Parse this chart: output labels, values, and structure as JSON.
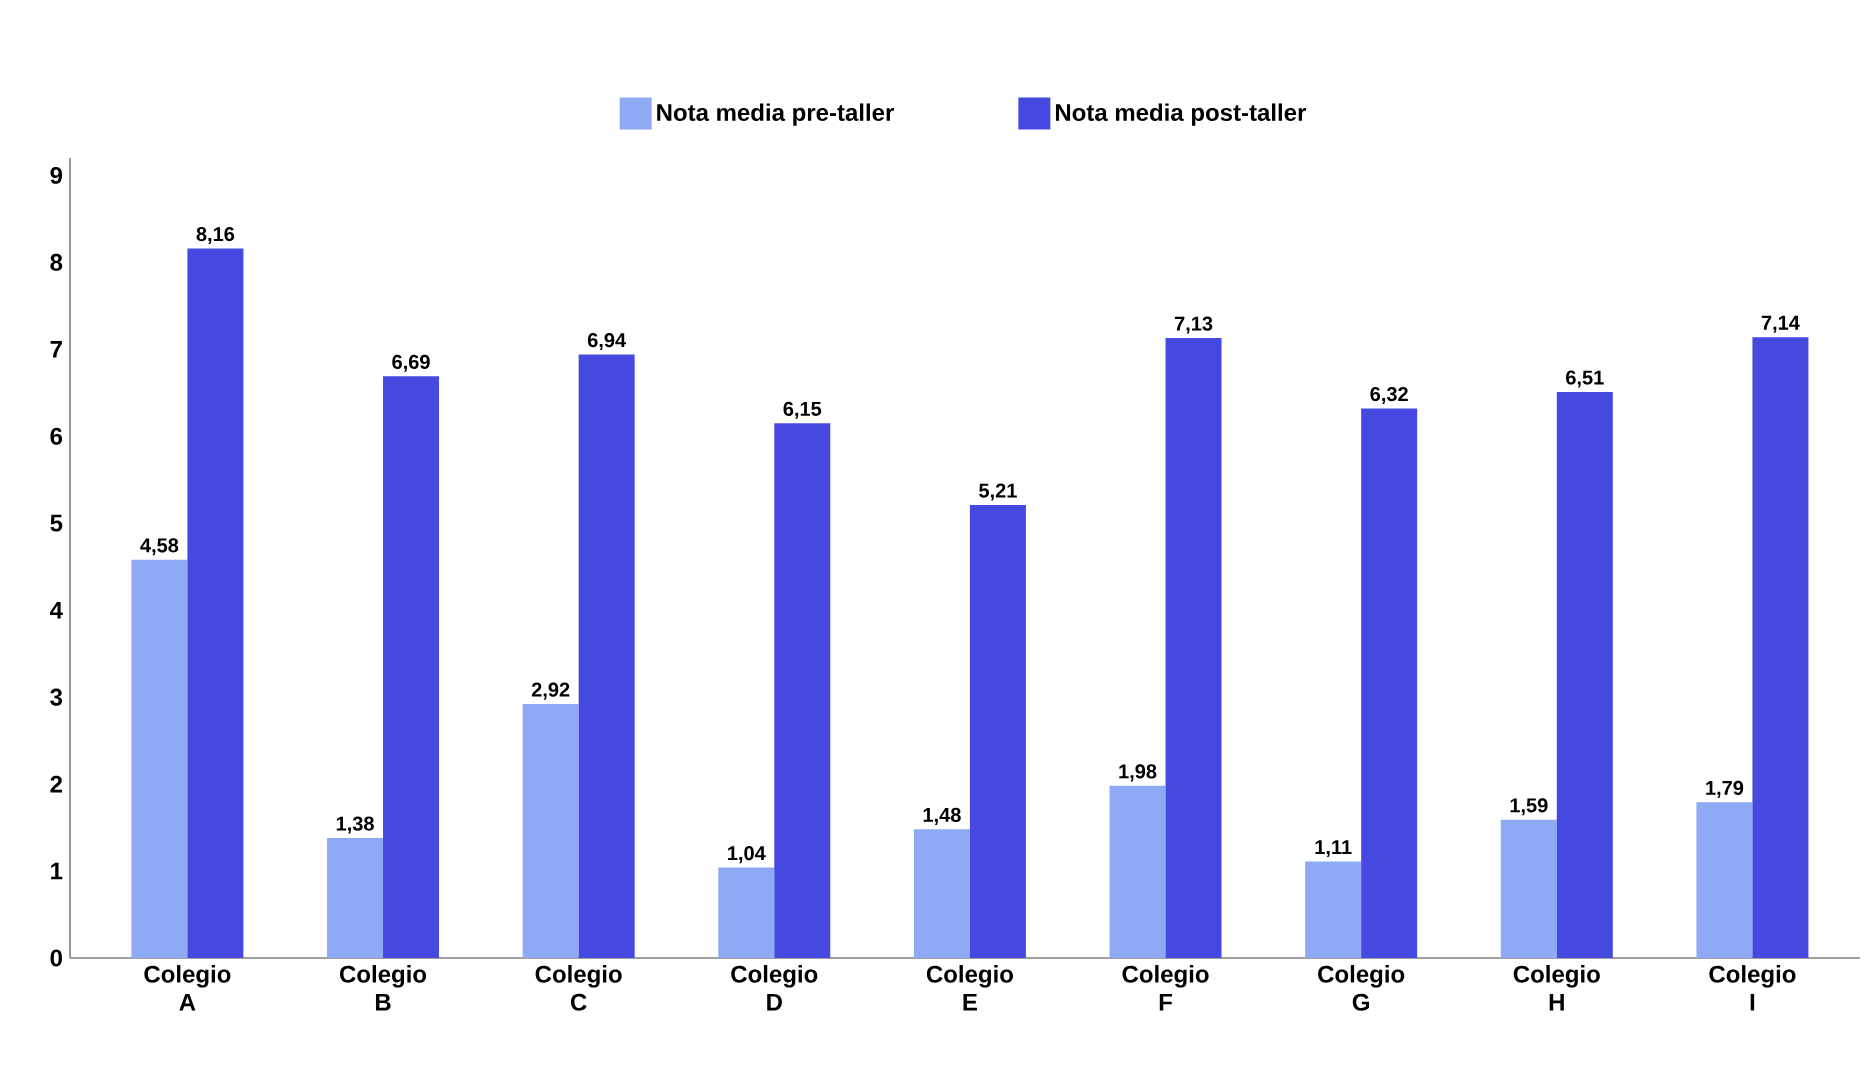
{
  "chart_data": {
    "type": "bar",
    "categories": [
      "Colegio A",
      "Colegio B",
      "Colegio C",
      "Colegio D",
      "Colegio E",
      "Colegio F",
      "Colegio G",
      "Colegio H",
      "Colegio I"
    ],
    "series": [
      {
        "name": "Nota media pre-taller",
        "color": "#8eaaf5",
        "values": [
          4.58,
          1.38,
          2.92,
          1.04,
          1.48,
          1.98,
          1.11,
          1.59,
          1.79
        ],
        "value_labels": [
          "4,58",
          "1,38",
          "2,92",
          "1,04",
          "1,48",
          "1,98",
          "1,11",
          "1,59",
          "1,79"
        ]
      },
      {
        "name": "Nota media post-taller",
        "color": "#4649e0",
        "values": [
          8.16,
          6.69,
          6.94,
          6.15,
          5.21,
          7.13,
          6.32,
          6.51,
          7.14
        ],
        "value_labels": [
          "8,16",
          "6,69",
          "6,94",
          "6,15",
          "5,21",
          "7,13",
          "6,32",
          "6,51",
          "7,14"
        ]
      }
    ],
    "ylim": [
      0,
      9.2
    ],
    "yticks": [
      0,
      1,
      2,
      3,
      4,
      5,
      6,
      7,
      8,
      9
    ],
    "grid": false,
    "legend": "top"
  }
}
